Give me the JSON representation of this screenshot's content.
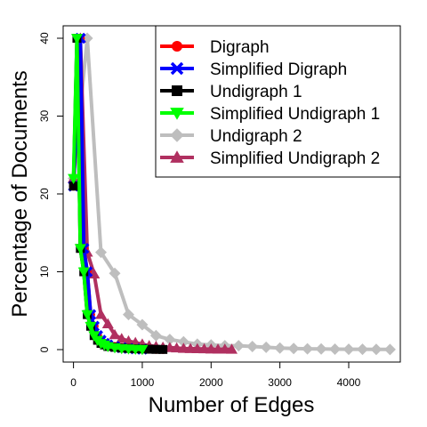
{
  "chart_data": {
    "type": "line",
    "xlabel": "Number of Edges",
    "ylabel": "Percentage of Documents",
    "xlim": [
      -150,
      4750
    ],
    "ylim": [
      -1.6,
      41.6
    ],
    "xticks": [
      0,
      1000,
      2000,
      3000,
      4000
    ],
    "yticks": [
      0,
      10,
      20,
      30,
      40
    ],
    "grid": false,
    "legend_position": "top-right",
    "series": [
      {
        "name": "Digraph",
        "color": "#ff0000",
        "marker": "circle",
        "x": [
          0,
          100,
          150,
          200,
          250,
          300,
          350,
          400,
          450,
          500,
          600,
          700,
          800,
          900,
          1000,
          1100,
          1200,
          1300
        ],
        "y": [
          21,
          40,
          13,
          10,
          4.5,
          3,
          1.8,
          1.2,
          0.8,
          0.6,
          0.4,
          0.25,
          0.15,
          0.1,
          0.08,
          0.05,
          0.03,
          0.02
        ]
      },
      {
        "name": "Simplified Digraph",
        "color": "#0000ff",
        "marker": "cross",
        "x": [
          0,
          100,
          150,
          200,
          250,
          300,
          350,
          400,
          450,
          500,
          600,
          700,
          800,
          900,
          1000
        ],
        "y": [
          21,
          40,
          13,
          10,
          4.5,
          3,
          1.8,
          1.2,
          0.8,
          0.6,
          0.4,
          0.25,
          0.15,
          0.1,
          0.05
        ]
      },
      {
        "name": "Undigraph 1",
        "color": "#000000",
        "marker": "square",
        "x": [
          0,
          50,
          100,
          150,
          200,
          250,
          300,
          350,
          400,
          450,
          500,
          600,
          700,
          800,
          900,
          1000,
          1100,
          1200,
          1300
        ],
        "y": [
          21,
          40,
          13,
          10,
          4.5,
          3,
          1.8,
          1.2,
          0.8,
          0.6,
          0.4,
          0.3,
          0.2,
          0.15,
          0.1,
          0.08,
          0.05,
          0.03,
          0.02
        ]
      },
      {
        "name": "Simplified Undigraph 1",
        "color": "#00ff00",
        "marker": "triangle-down",
        "x": [
          0,
          50,
          100,
          150,
          200,
          250,
          300,
          350,
          400,
          450,
          500,
          600,
          700,
          800,
          900,
          1000
        ],
        "y": [
          22,
          40,
          13,
          10,
          4.5,
          3,
          1.8,
          1.2,
          0.8,
          0.6,
          0.4,
          0.25,
          0.15,
          0.1,
          0.06,
          0.03
        ]
      },
      {
        "name": "Undigraph 2",
        "color": "#bebebe",
        "marker": "diamond",
        "x": [
          0,
          200,
          400,
          600,
          800,
          1000,
          1200,
          1400,
          1600,
          1800,
          2000,
          2200,
          2400,
          2600,
          2800,
          3000,
          3200,
          3400,
          3600,
          3800,
          4000,
          4200,
          4400,
          4600
        ],
        "y": [
          22,
          40,
          12.5,
          9.8,
          4.5,
          3.2,
          1.8,
          1.3,
          1.0,
          0.7,
          0.6,
          0.5,
          0.5,
          0.4,
          0.3,
          0.2,
          0.15,
          0.1,
          0.08,
          0.06,
          0.05,
          0.04,
          0.03,
          0.02
        ]
      },
      {
        "name": "Simplified Undigraph 2",
        "color": "#b03060",
        "marker": "triangle-up",
        "x": [
          0,
          100,
          200,
          300,
          400,
          500,
          600,
          700,
          800,
          900,
          1000,
          1100,
          1200,
          1300,
          1400,
          1500,
          1600,
          1700,
          1800,
          1900,
          2000,
          2100,
          2200,
          2300
        ],
        "y": [
          22,
          40,
          12.5,
          9.7,
          4.5,
          3.3,
          1.9,
          1.4,
          1.1,
          0.9,
          0.7,
          0.5,
          0.4,
          0.3,
          0.25,
          0.2,
          0.15,
          0.12,
          0.1,
          0.08,
          0.06,
          0.05,
          0.04,
          0.03
        ]
      }
    ]
  }
}
